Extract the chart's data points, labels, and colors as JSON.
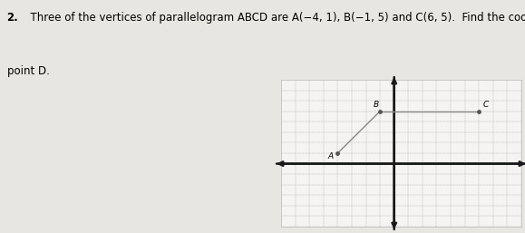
{
  "title_num": "2.",
  "title_line1": "  Three of the vertices of parallelogram ABCD are A(−4, 1), B(−1, 5) and C(6, 5).  Find the coordinates of",
  "title_line2": "point D.",
  "bg_color": "#e8e6e2",
  "grid_bg": "#f5f4f2",
  "points": {
    "A": [
      -4,
      1
    ],
    "B": [
      -1,
      5
    ],
    "C": [
      6,
      5
    ]
  },
  "point_labels": [
    "A",
    "B",
    "C"
  ],
  "connections": [
    [
      "A",
      "B"
    ],
    [
      "B",
      "C"
    ]
  ],
  "xlim": [
    -8,
    9
  ],
  "ylim": [
    -6,
    8
  ],
  "grid_color": "#999999",
  "axis_color": "#1a1a1a",
  "line_color": "#888888",
  "point_color": "#555555",
  "label_fontsize": 6.5,
  "text_fontsize": 8.5,
  "label_offsets": {
    "A": [
      -0.7,
      -0.5
    ],
    "B": [
      -0.5,
      0.4
    ],
    "C": [
      0.3,
      0.4
    ]
  }
}
